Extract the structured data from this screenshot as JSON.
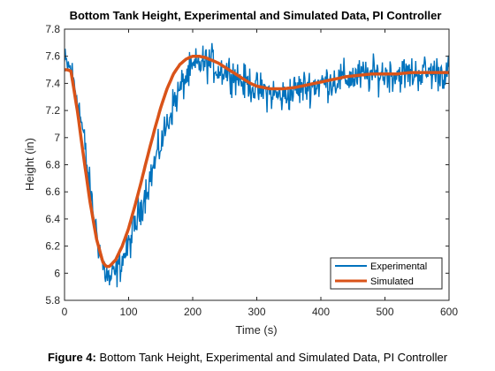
{
  "chart_data": {
    "type": "line",
    "title": "Bottom Tank Height, Experimental and Simulated Data, PI Controller",
    "xlabel": "Time (s)",
    "ylabel": "Height (in)",
    "xlim": [
      0,
      600
    ],
    "ylim": [
      5.8,
      7.8
    ],
    "xticks": [
      0,
      100,
      200,
      300,
      400,
      500,
      600
    ],
    "yticks": [
      5.8,
      6.0,
      6.2,
      6.4,
      6.6,
      6.8,
      7.0,
      7.2,
      7.4,
      7.6,
      7.8
    ],
    "xtick_labels": [
      "0",
      "100",
      "200",
      "300",
      "400",
      "500",
      "600"
    ],
    "ytick_labels": [
      "5.8",
      "6",
      "6.2",
      "6.4",
      "6.6",
      "6.8",
      "7",
      "7.2",
      "7.4",
      "7.6",
      "7.8"
    ],
    "grid": false,
    "legend_position": "bottom-right",
    "series": [
      {
        "name": "Experimental",
        "color": "#0072BD",
        "x": [
          0,
          10,
          20,
          30,
          40,
          50,
          60,
          70,
          80,
          90,
          100,
          110,
          120,
          130,
          140,
          150,
          160,
          170,
          180,
          190,
          200,
          210,
          220,
          230,
          240,
          250,
          260,
          270,
          280,
          290,
          300,
          320,
          340,
          360,
          380,
          400,
          420,
          440,
          460,
          480,
          500,
          520,
          540,
          560,
          580,
          600
        ],
        "y": [
          7.55,
          7.5,
          7.3,
          7.0,
          6.6,
          6.3,
          6.05,
          5.95,
          6.0,
          6.1,
          6.2,
          6.35,
          6.5,
          6.65,
          6.8,
          6.95,
          7.1,
          7.25,
          7.35,
          7.45,
          7.5,
          7.55,
          7.55,
          7.55,
          7.5,
          7.5,
          7.48,
          7.45,
          7.4,
          7.4,
          7.35,
          7.33,
          7.3,
          7.35,
          7.38,
          7.4,
          7.42,
          7.44,
          7.45,
          7.46,
          7.47,
          7.47,
          7.47,
          7.48,
          7.48,
          7.48
        ],
        "noise_amplitude": 0.1
      },
      {
        "name": "Simulated",
        "color": "#D95319",
        "x": [
          0,
          5,
          10,
          20,
          30,
          40,
          50,
          60,
          65,
          70,
          80,
          90,
          100,
          110,
          120,
          130,
          140,
          150,
          160,
          170,
          180,
          190,
          200,
          210,
          220,
          230,
          240,
          250,
          260,
          270,
          280,
          290,
          300,
          320,
          340,
          360,
          380,
          400,
          420,
          440,
          460,
          480,
          500,
          520,
          540,
          560,
          580,
          600
        ],
        "y": [
          7.5,
          7.5,
          7.49,
          7.2,
          6.85,
          6.52,
          6.25,
          6.08,
          6.05,
          6.05,
          6.1,
          6.2,
          6.33,
          6.5,
          6.68,
          6.87,
          7.05,
          7.22,
          7.36,
          7.47,
          7.54,
          7.58,
          7.6,
          7.6,
          7.59,
          7.57,
          7.55,
          7.52,
          7.49,
          7.46,
          7.43,
          7.4,
          7.38,
          7.36,
          7.36,
          7.37,
          7.39,
          7.41,
          7.43,
          7.45,
          7.46,
          7.47,
          7.47,
          7.47,
          7.48,
          7.48,
          7.48,
          7.48
        ]
      }
    ]
  },
  "caption": {
    "label": "Figure 4:",
    "text": " Bottom Tank Height, Experimental and Simulated Data, PI Controller"
  }
}
